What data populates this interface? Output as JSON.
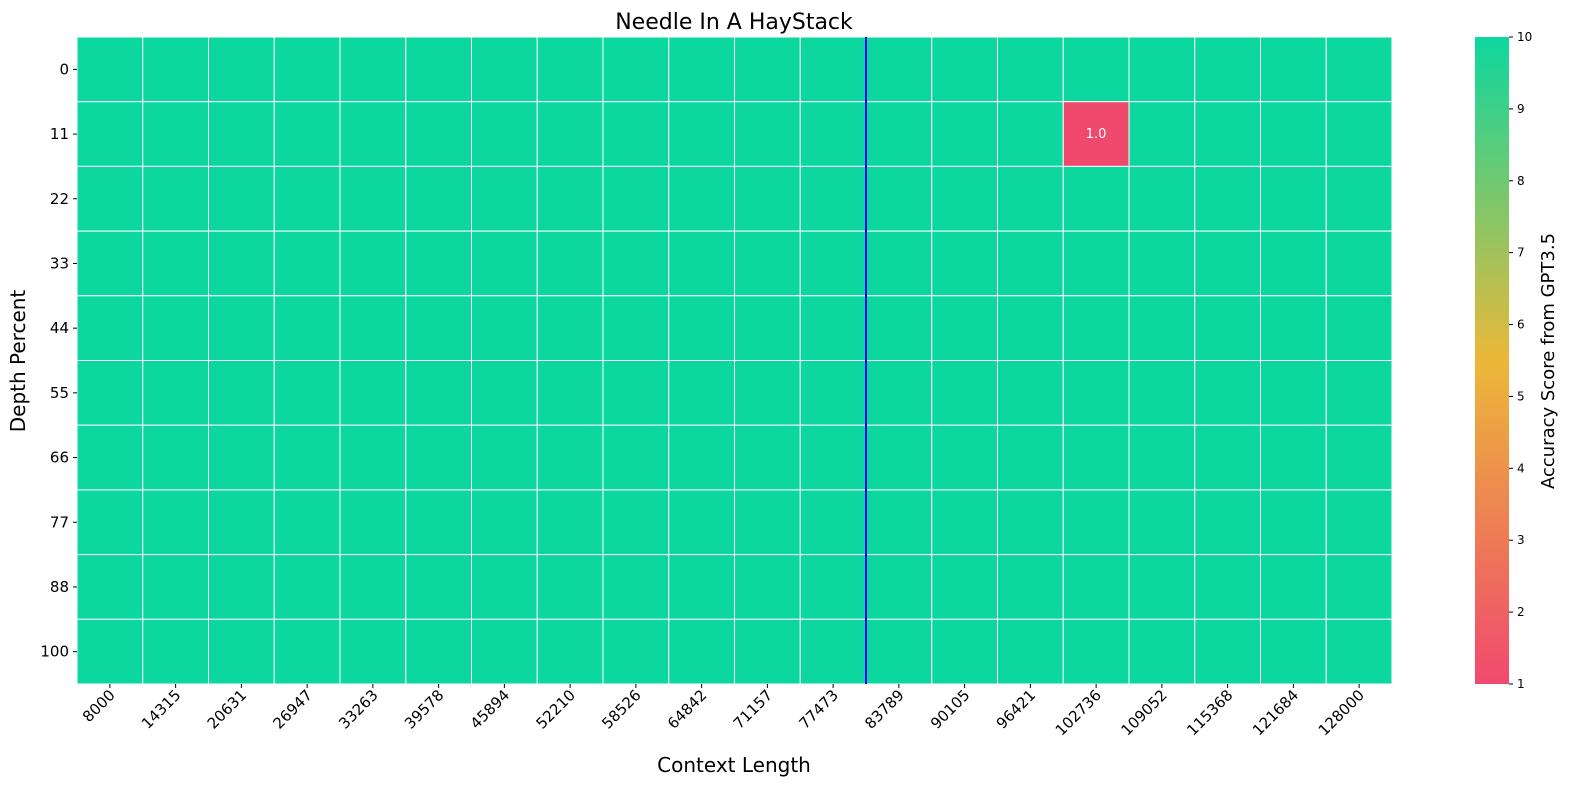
{
  "chart_data": {
    "type": "heatmap",
    "title": "Needle In A HayStack",
    "xlabel": "Context Length",
    "ylabel": "Depth Percent",
    "x_categories": [
      "8000",
      "14315",
      "20631",
      "26947",
      "33263",
      "39578",
      "45894",
      "52210",
      "58526",
      "64842",
      "71157",
      "77473",
      "83789",
      "90105",
      "96421",
      "102736",
      "109052",
      "115368",
      "121684",
      "128000"
    ],
    "y_categories": [
      "0",
      "11",
      "22",
      "33",
      "44",
      "55",
      "66",
      "77",
      "88",
      "100"
    ],
    "values": [
      [
        10,
        10,
        10,
        10,
        10,
        10,
        10,
        10,
        10,
        10,
        10,
        10,
        10,
        10,
        10,
        10,
        10,
        10,
        10,
        10
      ],
      [
        10,
        10,
        10,
        10,
        10,
        10,
        10,
        10,
        10,
        10,
        10,
        10,
        10,
        10,
        10,
        1.0,
        10,
        10,
        10,
        10
      ],
      [
        10,
        10,
        10,
        10,
        10,
        10,
        10,
        10,
        10,
        10,
        10,
        10,
        10,
        10,
        10,
        10,
        10,
        10,
        10,
        10
      ],
      [
        10,
        10,
        10,
        10,
        10,
        10,
        10,
        10,
        10,
        10,
        10,
        10,
        10,
        10,
        10,
        10,
        10,
        10,
        10,
        10
      ],
      [
        10,
        10,
        10,
        10,
        10,
        10,
        10,
        10,
        10,
        10,
        10,
        10,
        10,
        10,
        10,
        10,
        10,
        10,
        10,
        10
      ],
      [
        10,
        10,
        10,
        10,
        10,
        10,
        10,
        10,
        10,
        10,
        10,
        10,
        10,
        10,
        10,
        10,
        10,
        10,
        10,
        10
      ],
      [
        10,
        10,
        10,
        10,
        10,
        10,
        10,
        10,
        10,
        10,
        10,
        10,
        10,
        10,
        10,
        10,
        10,
        10,
        10,
        10
      ],
      [
        10,
        10,
        10,
        10,
        10,
        10,
        10,
        10,
        10,
        10,
        10,
        10,
        10,
        10,
        10,
        10,
        10,
        10,
        10,
        10
      ],
      [
        10,
        10,
        10,
        10,
        10,
        10,
        10,
        10,
        10,
        10,
        10,
        10,
        10,
        10,
        10,
        10,
        10,
        10,
        10,
        10
      ],
      [
        10,
        10,
        10,
        10,
        10,
        10,
        10,
        10,
        10,
        10,
        10,
        10,
        10,
        10,
        10,
        10,
        10,
        10,
        10,
        10
      ]
    ],
    "annotations": [
      {
        "x": "102736",
        "y": "11",
        "text": "1.0"
      }
    ],
    "colorbar": {
      "label": "Accuracy Score from GPT3.5",
      "range": [
        1,
        10
      ],
      "ticks": [
        "1",
        "2",
        "3",
        "4",
        "5",
        "6",
        "7",
        "8",
        "9",
        "10"
      ],
      "colors": [
        "#F0496E",
        "#EBB839",
        "#0CD79F"
      ]
    },
    "vertical_line": {
      "between": [
        "77473",
        "83789"
      ],
      "color": "#0000FF"
    },
    "grid": false
  }
}
